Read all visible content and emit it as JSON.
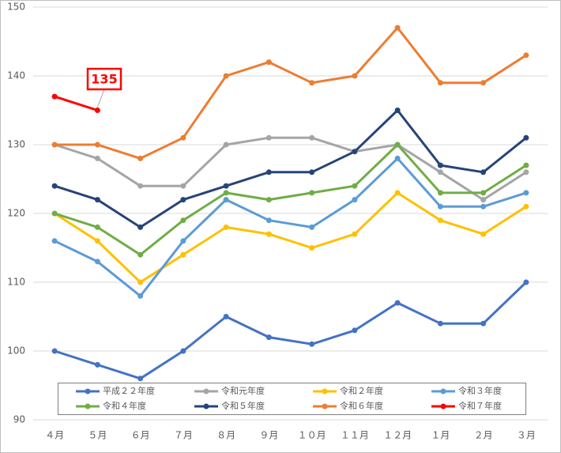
{
  "chart_data": {
    "type": "line",
    "categories": [
      "４月",
      "５月",
      "６月",
      "７月",
      "８月",
      "９月",
      "１０月",
      "１１月",
      "１２月",
      "１月",
      "２月",
      "３月"
    ],
    "series": [
      {
        "name": "平成２２年度",
        "color": "#4472c4",
        "values": [
          100,
          98,
          96,
          100,
          105,
          102,
          101,
          103,
          107,
          104,
          104,
          110
        ]
      },
      {
        "name": "令和元年度",
        "color": "#a5a5a5",
        "values": [
          130,
          128,
          124,
          124,
          130,
          131,
          131,
          129,
          130,
          126,
          122,
          126
        ]
      },
      {
        "name": "令和２年度",
        "color": "#ffc000",
        "values": [
          120,
          116,
          110,
          114,
          118,
          117,
          115,
          117,
          123,
          119,
          117,
          121
        ]
      },
      {
        "name": "令和３年度",
        "color": "#5b9bd5",
        "values": [
          116,
          113,
          108,
          116,
          122,
          119,
          118,
          122,
          128,
          121,
          121,
          123
        ]
      },
      {
        "name": "令和４年度",
        "color": "#70ad47",
        "values": [
          120,
          118,
          114,
          119,
          123,
          122,
          123,
          124,
          130,
          123,
          123,
          127
        ]
      },
      {
        "name": "令和５年度",
        "color": "#264478",
        "values": [
          124,
          122,
          118,
          122,
          124,
          126,
          126,
          129,
          135,
          127,
          126,
          131
        ]
      },
      {
        "name": "令和６年度",
        "color": "#ed7d31",
        "values": [
          130,
          130,
          128,
          131,
          140,
          142,
          139,
          140,
          147,
          139,
          139,
          143
        ]
      },
      {
        "name": "令和７年度",
        "color": "#ff0000",
        "values": [
          137,
          135,
          null,
          null,
          null,
          null,
          null,
          null,
          null,
          null,
          null,
          null
        ]
      }
    ],
    "ylim": [
      90,
      150
    ],
    "yticks": [
      90,
      100,
      110,
      120,
      130,
      140,
      150
    ],
    "grid": true
  }
}
